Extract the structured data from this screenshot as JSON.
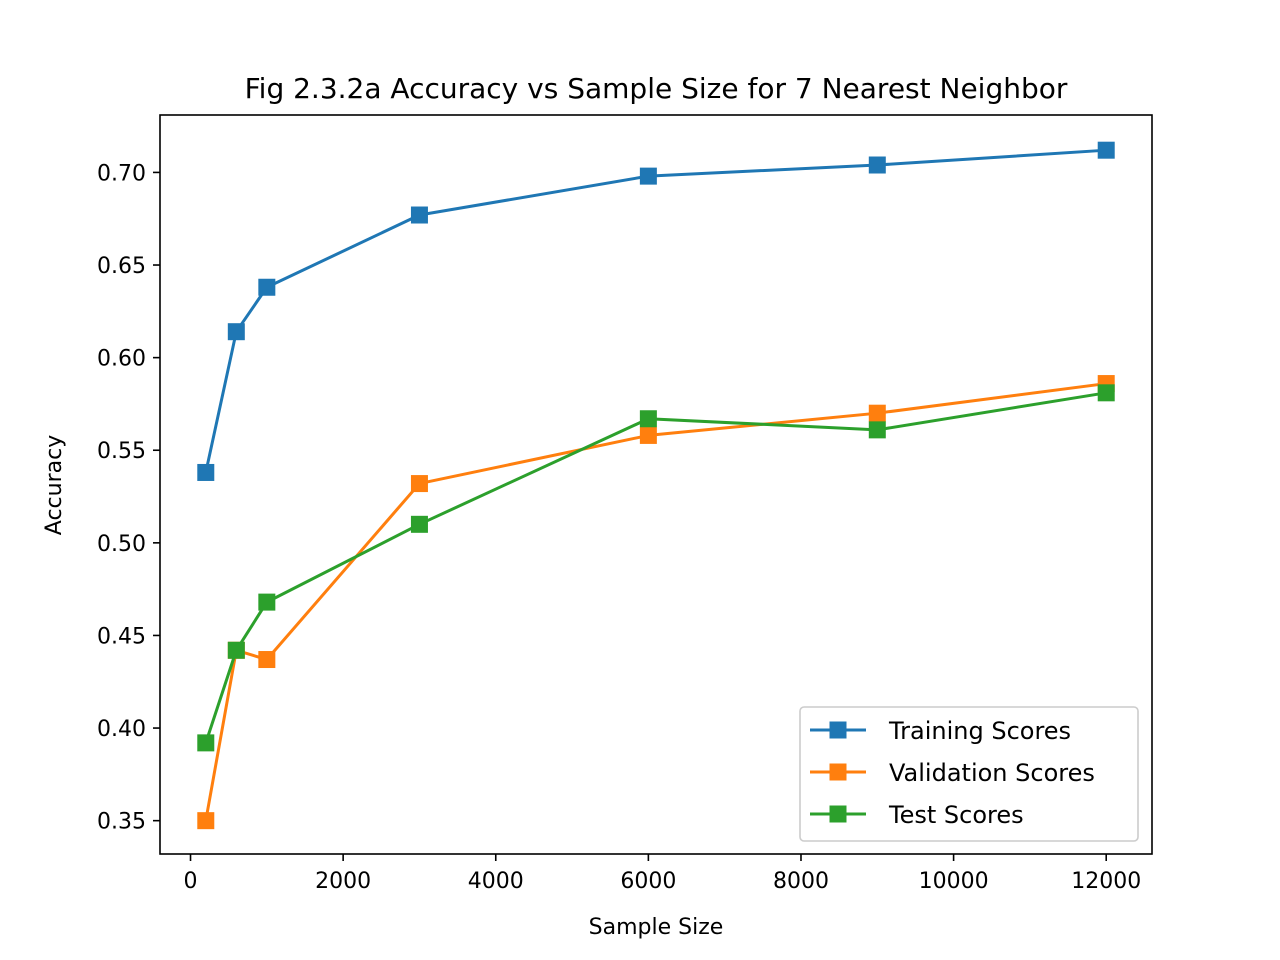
{
  "chart_data": {
    "type": "line",
    "title": "Fig 2.3.2a Accuracy vs Sample Size for 7 Nearest Neighbor",
    "xlabel": "Sample Size",
    "ylabel": "Accuracy",
    "x": [
      200,
      600,
      1000,
      3000,
      6000,
      9000,
      12000
    ],
    "xlim": [
      -400,
      12600
    ],
    "ylim": [
      0.332,
      0.731
    ],
    "xticks": [
      0,
      2000,
      4000,
      6000,
      8000,
      10000,
      12000
    ],
    "xtick_labels": [
      "0",
      "2000",
      "4000",
      "6000",
      "8000",
      "10000",
      "12000"
    ],
    "yticks": [
      0.35,
      0.4,
      0.45,
      0.5,
      0.55,
      0.6,
      0.65,
      0.7
    ],
    "ytick_labels": [
      "0.35",
      "0.40",
      "0.45",
      "0.50",
      "0.55",
      "0.60",
      "0.65",
      "0.70"
    ],
    "grid": false,
    "legend_position": "lower-right",
    "marker": "square",
    "series": [
      {
        "name": "Training Scores",
        "color": "#1f77b4",
        "values": [
          0.538,
          0.614,
          0.638,
          0.677,
          0.698,
          0.704,
          0.712
        ]
      },
      {
        "name": "Validation Scores",
        "color": "#ff7f0e",
        "values": [
          0.35,
          0.442,
          0.437,
          0.532,
          0.558,
          0.57,
          0.586
        ]
      },
      {
        "name": "Test Scores",
        "color": "#2ca02c",
        "values": [
          0.392,
          0.442,
          0.468,
          0.51,
          0.567,
          0.561,
          0.581
        ]
      }
    ]
  }
}
